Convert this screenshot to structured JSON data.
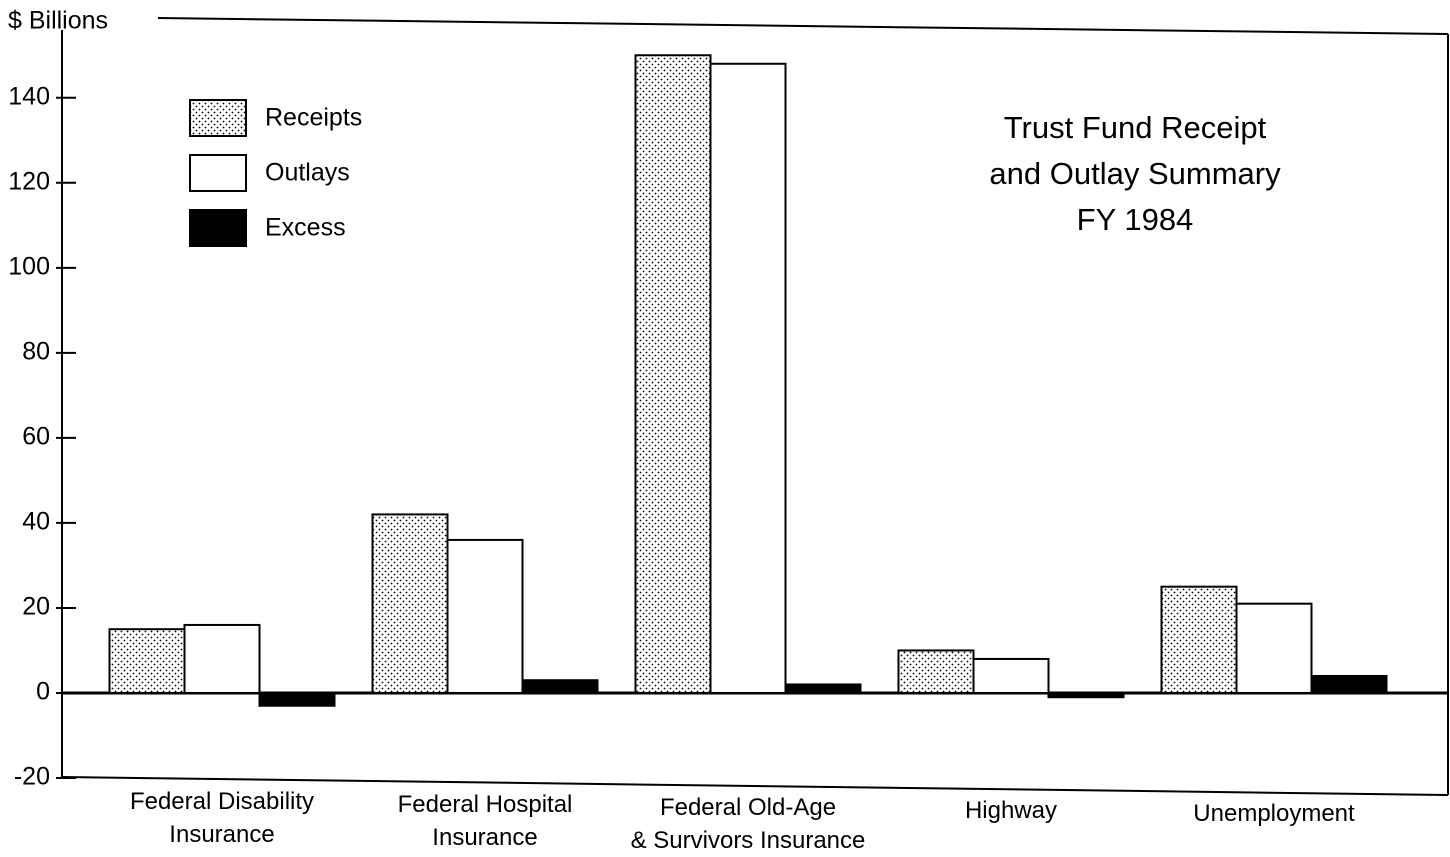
{
  "chart_data": {
    "type": "bar",
    "title": "Trust Fund Receipt\nand Outlay Summary\nFY 1984",
    "y_label": "$ Billions",
    "categories": [
      "Federal Disability\nInsurance",
      "Federal Hospital\nInsurance",
      "Federal Old-Age\n& Survivors Insurance",
      "Highway",
      "Unemployment"
    ],
    "series": [
      {
        "name": "Receipts",
        "color": "#ffffff",
        "pattern": "dots",
        "values": [
          15,
          42,
          150,
          10,
          25
        ]
      },
      {
        "name": "Outlays",
        "color": "#ffffff",
        "values": [
          16,
          36,
          148,
          8,
          21
        ]
      },
      {
        "name": "Excess",
        "color": "#000000",
        "values": [
          -3,
          3,
          2,
          -1,
          4
        ]
      }
    ],
    "ylim": [
      -20,
      155
    ],
    "yticks": [
      -20,
      0,
      20,
      40,
      60,
      80,
      100,
      120,
      140
    ],
    "legend": "upper left"
  }
}
